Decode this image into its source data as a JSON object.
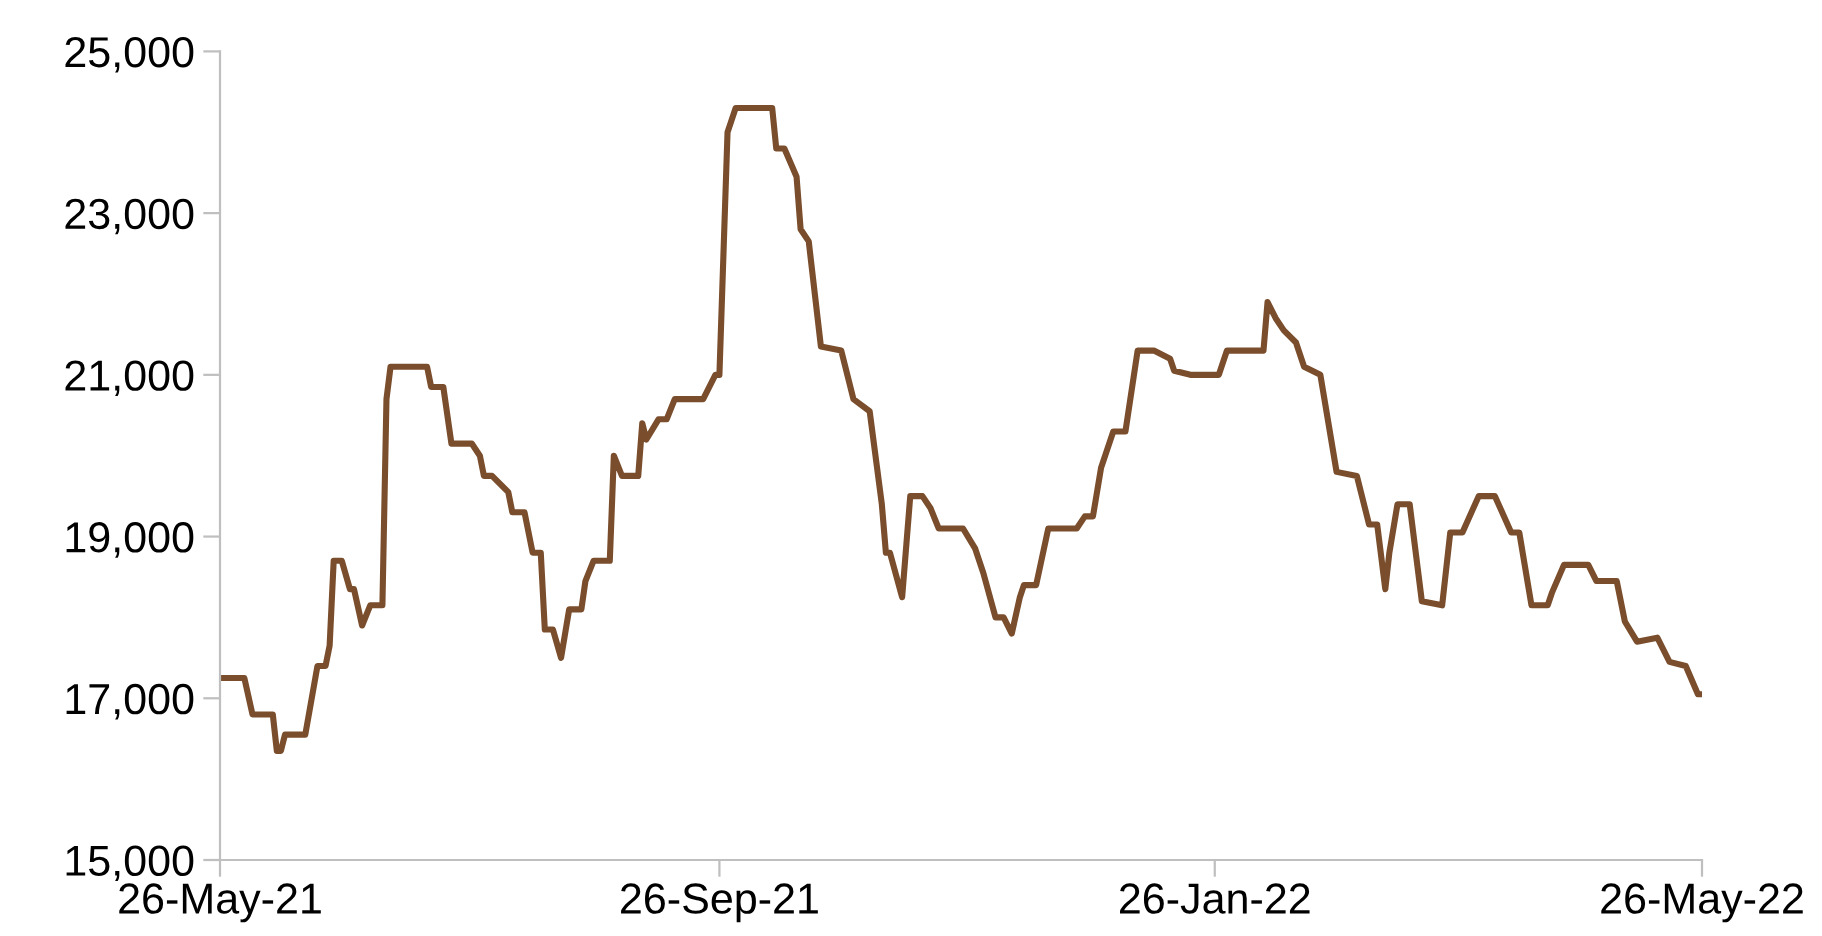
{
  "chart_data": {
    "type": "line",
    "x": [
      "2021-05-26",
      "2021-06-01",
      "2021-06-03",
      "2021-06-08",
      "2021-06-09",
      "2021-06-10",
      "2021-06-11",
      "2021-06-16",
      "2021-06-19",
      "2021-06-21",
      "2021-06-22",
      "2021-06-23",
      "2021-06-25",
      "2021-06-27",
      "2021-06-28",
      "2021-06-30",
      "2021-07-02",
      "2021-07-05",
      "2021-07-06",
      "2021-07-07",
      "2021-07-16",
      "2021-07-17",
      "2021-07-20",
      "2021-07-22",
      "2021-07-27",
      "2021-07-29",
      "2021-07-30",
      "2021-08-01",
      "2021-08-05",
      "2021-08-06",
      "2021-08-09",
      "2021-08-11",
      "2021-08-13",
      "2021-08-14",
      "2021-08-16",
      "2021-08-18",
      "2021-08-20",
      "2021-08-23",
      "2021-08-24",
      "2021-08-26",
      "2021-08-30",
      "2021-08-31",
      "2021-09-02",
      "2021-09-06",
      "2021-09-07",
      "2021-09-08",
      "2021-09-11",
      "2021-09-13",
      "2021-09-15",
      "2021-09-22",
      "2021-09-25",
      "2021-09-26",
      "2021-09-28",
      "2021-09-30",
      "2021-10-09",
      "2021-10-10",
      "2021-10-12",
      "2021-10-15",
      "2021-10-16",
      "2021-10-18",
      "2021-10-21",
      "2021-10-26",
      "2021-10-29",
      "2021-11-02",
      "2021-11-05",
      "2021-11-06",
      "2021-11-07",
      "2021-11-10",
      "2021-11-12",
      "2021-11-15",
      "2021-11-17",
      "2021-11-19",
      "2021-11-25",
      "2021-11-28",
      "2021-11-30",
      "2021-12-03",
      "2021-12-05",
      "2021-12-07",
      "2021-12-09",
      "2021-12-10",
      "2021-12-13",
      "2021-12-16",
      "2021-12-23",
      "2021-12-25",
      "2021-12-27",
      "2021-12-29",
      "2022-01-01",
      "2022-01-04",
      "2022-01-07",
      "2022-01-11",
      "2022-01-15",
      "2022-01-16",
      "2022-01-20",
      "2022-01-27",
      "2022-01-29",
      "2022-02-07",
      "2022-02-08",
      "2022-02-10",
      "2022-02-12",
      "2022-02-15",
      "2022-02-17",
      "2022-02-21",
      "2022-02-25",
      "2022-03-02",
      "2022-03-05",
      "2022-03-07",
      "2022-03-09",
      "2022-03-10",
      "2022-03-12",
      "2022-03-15",
      "2022-03-18",
      "2022-03-23",
      "2022-03-25",
      "2022-03-28",
      "2022-04-01",
      "2022-04-05",
      "2022-04-09",
      "2022-04-11",
      "2022-04-14",
      "2022-04-18",
      "2022-04-19",
      "2022-04-22",
      "2022-04-28",
      "2022-04-30",
      "2022-05-05",
      "2022-05-07",
      "2022-05-10",
      "2022-05-15",
      "2022-05-18",
      "2022-05-22",
      "2022-05-25",
      "2022-05-26"
    ],
    "series": [
      {
        "color": "#7a4e2d",
        "values": [
          17250,
          17250,
          16800,
          16800,
          16350,
          16350,
          16550,
          16550,
          17400,
          17400,
          17650,
          18700,
          18700,
          18350,
          18350,
          17900,
          18150,
          18150,
          20700,
          21100,
          21100,
          20850,
          20850,
          20150,
          20150,
          20000,
          19750,
          19750,
          19550,
          19300,
          19300,
          18800,
          18800,
          17850,
          17850,
          17500,
          18100,
          18100,
          18450,
          18700,
          18700,
          20000,
          19750,
          19750,
          20400,
          20200,
          20450,
          20450,
          20700,
          20700,
          21000,
          21000,
          24000,
          24300,
          24300,
          23800,
          23800,
          23450,
          22800,
          22650,
          21350,
          21300,
          20700,
          20550,
          19400,
          18800,
          18800,
          18250,
          19500,
          19500,
          19350,
          19100,
          19100,
          18850,
          18550,
          18000,
          18000,
          17800,
          18250,
          18400,
          18400,
          19100,
          19100,
          19250,
          19250,
          19850,
          20300,
          20300,
          21300,
          21300,
          21200,
          21050,
          21000,
          21000,
          21300,
          21300,
          21900,
          21700,
          21550,
          21400,
          21100,
          21000,
          19800,
          19750,
          19150,
          19150,
          18350,
          18800,
          19400,
          19400,
          18200,
          18150,
          19050,
          19050,
          19500,
          19500,
          19050,
          19050,
          18150,
          18150,
          18300,
          18650,
          18650,
          18450,
          18450,
          17950,
          17700,
          17750,
          17450,
          17400,
          17050,
          17050
        ]
      }
    ],
    "xlim": [
      "2021-05-26",
      "2022-05-26"
    ],
    "xticks": [
      {
        "value": "2021-05-26",
        "label": "26-May-21"
      },
      {
        "value": "2021-09-26",
        "label": "26-Sep-21"
      },
      {
        "value": "2022-01-26",
        "label": "26-Jan-22"
      },
      {
        "value": "2022-05-26",
        "label": "26-May-22"
      }
    ],
    "ylim": [
      15000,
      25000
    ],
    "yticks": [
      {
        "value": 15000,
        "label": "15,000"
      },
      {
        "value": 17000,
        "label": "17,000"
      },
      {
        "value": 19000,
        "label": "19,000"
      },
      {
        "value": 21000,
        "label": "21,000"
      },
      {
        "value": 23000,
        "label": "23,000"
      },
      {
        "value": 25000,
        "label": "25,000"
      }
    ],
    "line_style": "solid"
  }
}
